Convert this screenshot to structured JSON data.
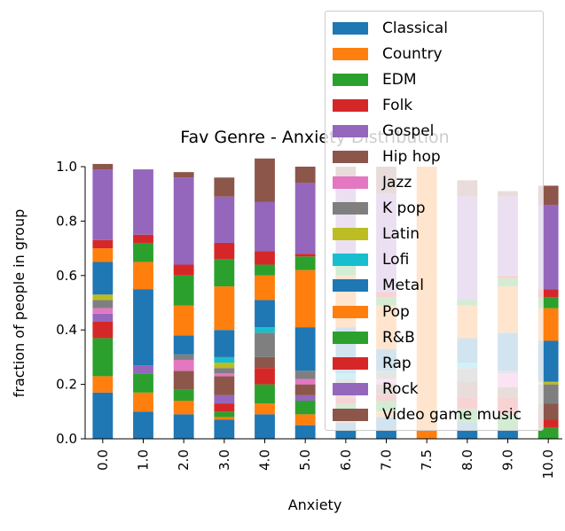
{
  "chart_data": {
    "type": "bar",
    "stacked": true,
    "title": "Fav Genre - Anxiety Distribution",
    "xlabel": "Anxiety",
    "ylabel": "fraction of people in group",
    "ylim": [
      0,
      1.0
    ],
    "yticks": [
      "0.0",
      "0.2",
      "0.4",
      "0.6",
      "0.8",
      "1.0"
    ],
    "grid": false,
    "legend_position": "top-right",
    "categories": [
      "0.0",
      "1.0",
      "2.0",
      "3.0",
      "4.0",
      "5.0",
      "6.0",
      "7.0",
      "7.5",
      "8.0",
      "9.0",
      "10.0"
    ],
    "series": [
      {
        "name": "Classical",
        "color": "#1f77b4",
        "values": [
          0.17,
          0.1,
          0.09,
          0.07,
          0.09,
          0.05,
          0.06,
          0.08,
          0.0,
          0.06,
          0.03,
          0.0
        ]
      },
      {
        "name": "Country",
        "color": "#ff7f0e",
        "values": [
          0.06,
          0.07,
          0.05,
          0.01,
          0.04,
          0.04,
          0.02,
          0.02,
          1.0,
          0.0,
          0.0,
          0.0
        ]
      },
      {
        "name": "EDM",
        "color": "#2ca02c",
        "values": [
          0.14,
          0.07,
          0.04,
          0.02,
          0.07,
          0.05,
          0.05,
          0.04,
          0.0,
          0.05,
          0.06,
          0.04
        ]
      },
      {
        "name": "Folk",
        "color": "#d62728",
        "values": [
          0.06,
          0.0,
          0.0,
          0.03,
          0.06,
          0.0,
          0.02,
          0.02,
          0.0,
          0.04,
          0.06,
          0.03
        ]
      },
      {
        "name": "Gospel",
        "color": "#9467bd",
        "values": [
          0.03,
          0.03,
          0.0,
          0.03,
          0.0,
          0.02,
          0.0,
          0.0,
          0.0,
          0.0,
          0.0,
          0.0
        ]
      },
      {
        "name": "Hip hop",
        "color": "#8c564b",
        "values": [
          0.0,
          0.0,
          0.07,
          0.07,
          0.04,
          0.04,
          0.04,
          0.04,
          0.0,
          0.06,
          0.04,
          0.06
        ]
      },
      {
        "name": "Jazz",
        "color": "#e377c2",
        "values": [
          0.02,
          0.0,
          0.04,
          0.01,
          0.0,
          0.02,
          0.01,
          0.02,
          0.0,
          0.0,
          0.05,
          0.0
        ]
      },
      {
        "name": "K pop",
        "color": "#7f7f7f",
        "values": [
          0.03,
          0.0,
          0.02,
          0.02,
          0.09,
          0.03,
          0.02,
          0.03,
          0.0,
          0.05,
          0.01,
          0.07
        ]
      },
      {
        "name": "Latin",
        "color": "#bcbd22",
        "values": [
          0.02,
          0.0,
          0.0,
          0.02,
          0.0,
          0.0,
          0.0,
          0.0,
          0.0,
          0.0,
          0.0,
          0.01
        ]
      },
      {
        "name": "Lofi",
        "color": "#17becf",
        "values": [
          0.0,
          0.0,
          0.0,
          0.02,
          0.02,
          0.0,
          0.02,
          0.0,
          0.0,
          0.02,
          0.0,
          0.0
        ]
      },
      {
        "name": "Metal",
        "color": "#1f77b4",
        "values": [
          0.12,
          0.28,
          0.07,
          0.1,
          0.1,
          0.16,
          0.17,
          0.08,
          0.0,
          0.09,
          0.14,
          0.15
        ]
      },
      {
        "name": "Pop",
        "color": "#ff7f0e",
        "values": [
          0.05,
          0.1,
          0.11,
          0.16,
          0.09,
          0.21,
          0.19,
          0.16,
          0.0,
          0.12,
          0.17,
          0.12
        ]
      },
      {
        "name": "R&B",
        "color": "#2ca02c",
        "values": [
          0.0,
          0.07,
          0.11,
          0.1,
          0.04,
          0.05,
          0.04,
          0.03,
          0.0,
          0.02,
          0.03,
          0.04
        ]
      },
      {
        "name": "Rap",
        "color": "#d62728",
        "values": [
          0.03,
          0.03,
          0.04,
          0.06,
          0.05,
          0.01,
          0.02,
          0.02,
          0.0,
          0.0,
          0.01,
          0.03
        ]
      },
      {
        "name": "Rock",
        "color": "#9467bd",
        "values": [
          0.26,
          0.24,
          0.32,
          0.17,
          0.18,
          0.26,
          0.27,
          0.36,
          0.0,
          0.38,
          0.29,
          0.31
        ]
      },
      {
        "name": "Video game music",
        "color": "#8c564b",
        "values": [
          0.02,
          0.0,
          0.02,
          0.07,
          0.16,
          0.06,
          0.07,
          0.1,
          0.0,
          0.06,
          0.02,
          0.07
        ]
      }
    ]
  }
}
